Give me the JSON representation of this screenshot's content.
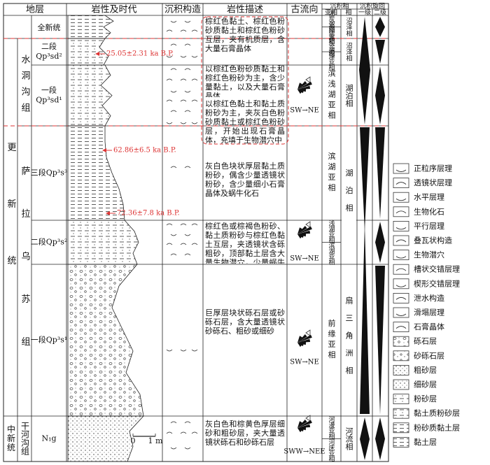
{
  "header": {
    "strata": "地层",
    "lithology": "岩性及时代",
    "structure": "沉积构造",
    "description": "岩性描述",
    "paleocurrent": "古流向",
    "facies": "沉积相",
    "subfacies": "亚相",
    "facies_col": "相",
    "cycle": "沉积旋回",
    "cycle_1": "一级",
    "cycle_2": "二级"
  },
  "series": [
    "更新统",
    "中新统"
  ],
  "formations": [
    "水洞沟组",
    "萨拉乌苏组",
    "干河沟组"
  ],
  "units": [
    {
      "member": "全新统",
      "description": "棕红色黏土、棕红色粉砂质黏土和棕红色粉砂互层，夹有机质层，含大量石膏晶体",
      "subfacies": [
        "泥炭亚相",
        "沼泽亚相"
      ],
      "facies": "沼泽相"
    },
    {
      "member": "二段",
      "code": "Qp³sd²",
      "description": "以棕红色粉砂质黏土和棕红色粉砂为主，含少量黏土，以及大量石膏晶体",
      "subfacies": [
        "泥炭亚相",
        "沼泽亚相"
      ],
      "facies": "沼泽相"
    },
    {
      "member": "一段",
      "code": "Qp³sd¹",
      "description": "以棕红色黏土和黏土质粉砂为主，夹灰白色粉砂质黏土或棕红色粉砂层，开始出现石膏晶体，充填于生物潜穴中",
      "subfacies": [
        "滨浅湖亚相"
      ],
      "facies": "湖泊相",
      "paleocurrent": "SW→NE"
    },
    {
      "member": "三段Qp³s³",
      "description": "灰白色块状厚层黏土质粉砂，偶含少量透镜状粉砂，含少量细小石膏晶体及蜗牛化石",
      "subfacies": [
        "滨湖亚相"
      ],
      "facies": "湖泊相"
    },
    {
      "member": "二段Qp³s²",
      "description": "棕红色或棕褐色粉砂、黏土质粉砂与棕红色黏土互层，夹透镜状含砾粗砂，顶部黏土层含大量生物潜穴，少量蜗牛化石",
      "subfacies": [
        "浅湖亚相",
        "滨湖亚相"
      ],
      "paleocurrent": "SW→NE"
    },
    {
      "member": "一段Qp³s¹",
      "description": "巨厚层块状砾石层或砂砾石层，含大量透镜状砂砾石、粗砂或细砂",
      "subfacies": [
        "前缘亚相"
      ],
      "facies": "扇三角洲相",
      "paleocurrent": "SW→NE"
    },
    {
      "member": "N₁g",
      "description": "灰白色和棕黄色厚层细砂和粗砂层，夹大量透镜状砾石和砂砾石层",
      "subfacies": [
        "河漫亚相",
        "河床亚相"
      ],
      "facies": "河流相",
      "paleocurrent": "SWW→NEE"
    }
  ],
  "dates": [
    "25.05±2.31 ka B.P.",
    "62.86±6.5 ka B.P.",
    "72.36±7.8 ka B.P."
  ],
  "scale": [
    "0",
    "1 m"
  ],
  "legend": [
    "正粒序层理",
    "透镜状层理",
    "水平层理",
    "生物化石",
    "平行层理",
    "叠瓦状构造",
    "生物潜穴",
    "槽状交错层理",
    "楔形交错层理",
    "泄水构造",
    "滑塌层理",
    "石膏晶体",
    "砾石层",
    "砂砾石层",
    "粗砂层",
    "细砂层",
    "粉砂层",
    "黏土质粉砂层",
    "粉砂质黏土层",
    "黏土层"
  ]
}
